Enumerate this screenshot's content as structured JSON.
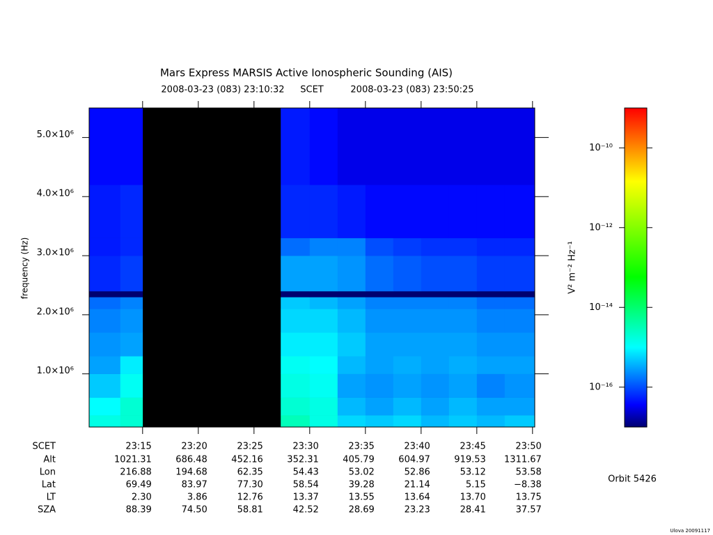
{
  "chart_data": {
    "type": "spectrogram",
    "title": "Mars Express MARSIS Active Ionospheric Sounding (AIS)",
    "start_time": "2008-03-23 (083) 23:10:32",
    "time_label": "SCET",
    "end_time": "2008-03-23 (083) 23:50:25",
    "ylabel": "frequency (Hz)",
    "xlim": [
      1390.2,
      1430.2
    ],
    "xticks": [
      {
        "value": 1395,
        "label": "23:15"
      },
      {
        "value": 1400,
        "label": "23:20"
      },
      {
        "value": 1405,
        "label": "23:25"
      },
      {
        "value": 1410,
        "label": "23:30"
      },
      {
        "value": 1415,
        "label": "23:35"
      },
      {
        "value": 1420,
        "label": "23:40"
      },
      {
        "value": 1425,
        "label": "23:45"
      },
      {
        "value": 1430,
        "label": "23:50"
      }
    ],
    "ylim": [
      100000,
      5500000
    ],
    "yticks": [
      {
        "value": 1000000,
        "label": "1.0×10⁶"
      },
      {
        "value": 2000000,
        "label": "2.0×10⁶"
      },
      {
        "value": 3000000,
        "label": "3.0×10⁶"
      },
      {
        "value": 4000000,
        "label": "4.0×10⁶"
      },
      {
        "value": 5000000,
        "label": "5.0×10⁶"
      }
    ],
    "xbins": [
      1390.2,
      1393,
      1395,
      1397.5,
      1400,
      1402.5,
      1405,
      1407.4,
      1410,
      1412.5,
      1415,
      1417.5,
      1420,
      1422.5,
      1425,
      1427.5,
      1430.2
    ],
    "ybins": [
      100000,
      300000,
      600000,
      1000000,
      1300000,
      1700000,
      2100000,
      2300000,
      2400000,
      3000000,
      3300000,
      4200000,
      5500000
    ],
    "z": [
      [
        1.5e-15,
        2e-15,
        null,
        null,
        null,
        null,
        null,
        3e-15,
        1.5e-15,
        6e-16,
        5e-16,
        6e-16,
        4e-16,
        5e-16,
        4e-16,
        5e-16
      ],
      [
        1e-15,
        2e-15,
        null,
        null,
        null,
        null,
        null,
        2e-15,
        1.5e-15,
        4e-16,
        3e-16,
        4e-16,
        3e-16,
        4e-16,
        3e-16,
        3e-16
      ],
      [
        5e-16,
        1.2e-15,
        null,
        null,
        null,
        null,
        null,
        1.5e-15,
        1.2e-15,
        3e-16,
        2.5e-16,
        3e-16,
        2.5e-16,
        3e-16,
        2e-16,
        2.5e-16
      ],
      [
        3e-16,
        8e-16,
        null,
        null,
        null,
        null,
        null,
        1.2e-15,
        1e-15,
        4e-16,
        3e-16,
        3.5e-16,
        3e-16,
        3.5e-16,
        3e-16,
        3e-16
      ],
      [
        2.5e-16,
        3e-16,
        null,
        null,
        null,
        null,
        null,
        8e-16,
        8e-16,
        5e-16,
        3e-16,
        3e-16,
        3e-16,
        3e-16,
        2.5e-16,
        2.5e-16
      ],
      [
        2e-16,
        2.5e-16,
        null,
        null,
        null,
        null,
        null,
        6e-16,
        6e-16,
        4e-16,
        2.5e-16,
        2.5e-16,
        2.5e-16,
        2.5e-16,
        2e-16,
        2e-16
      ],
      [
        1.5e-16,
        2e-16,
        null,
        null,
        null,
        null,
        null,
        5e-16,
        4e-16,
        3e-16,
        2e-16,
        2e-16,
        2e-16,
        2e-16,
        1.5e-16,
        1.5e-16
      ],
      [
        1e-17,
        1e-17,
        null,
        null,
        null,
        null,
        null,
        1e-17,
        1e-17,
        1e-17,
        1e-17,
        1e-17,
        1e-17,
        1e-17,
        1e-17,
        1e-17
      ],
      [
        6e-17,
        8e-17,
        null,
        null,
        null,
        null,
        null,
        3e-16,
        3e-16,
        2.5e-16,
        1.5e-16,
        1.2e-16,
        1e-16,
        1e-16,
        8e-17,
        8e-17
      ],
      [
        5e-17,
        6e-17,
        null,
        null,
        null,
        null,
        null,
        1.5e-16,
        2e-16,
        2e-16,
        1e-16,
        8e-17,
        7e-17,
        7e-17,
        6e-17,
        6e-17
      ],
      [
        5e-17,
        6e-17,
        null,
        null,
        null,
        null,
        null,
        6e-17,
        6e-17,
        5e-17,
        4e-17,
        4e-17,
        4e-17,
        4e-17,
        4e-17,
        4e-17
      ],
      [
        4e-17,
        4e-17,
        null,
        null,
        null,
        null,
        null,
        5e-17,
        4e-17,
        3e-17,
        3e-17,
        3e-17,
        3e-17,
        3e-17,
        3e-17,
        3e-17
      ]
    ],
    "zlim": [
      1e-17,
      1e-09
    ],
    "zscale": "log",
    "zticks": [
      {
        "value": 1e-10,
        "label": "10⁻¹⁰"
      },
      {
        "value": 1e-12,
        "label": "10⁻¹²"
      },
      {
        "value": 1e-14,
        "label": "10⁻¹⁴"
      },
      {
        "value": 1e-16,
        "label": "10⁻¹⁶"
      }
    ],
    "zlabel": "V² m⁻² Hz⁻¹",
    "colormap": [
      "#000070",
      "#0000ff",
      "#00ffff",
      "#00ff00",
      "#ffff00",
      "#ff0000"
    ],
    "colormap_stops": [
      0,
      0.07,
      0.25,
      0.47,
      0.77,
      1
    ],
    "missing_color": "#000000",
    "ephemeris": {
      "scet_label": "SCET",
      "rows": [
        {
          "label": "Alt",
          "values": [
            "1021.31",
            "686.48",
            "452.16",
            "352.31",
            "405.79",
            "604.97",
            "919.53",
            "1311.67"
          ]
        },
        {
          "label": "Lon",
          "values": [
            "216.88",
            "194.68",
            "62.35",
            "54.43",
            "53.02",
            "52.86",
            "53.12",
            "53.58"
          ]
        },
        {
          "label": "Lat",
          "values": [
            "69.49",
            "83.97",
            "77.30",
            "58.54",
            "39.28",
            "21.14",
            "5.15",
            "−8.38"
          ]
        },
        {
          "label": "LT",
          "values": [
            "2.30",
            "3.86",
            "12.76",
            "13.37",
            "13.55",
            "13.64",
            "13.70",
            "13.75"
          ]
        },
        {
          "label": "SZA",
          "values": [
            "88.39",
            "74.50",
            "58.81",
            "42.52",
            "28.69",
            "23.23",
            "28.41",
            "37.57"
          ]
        }
      ]
    },
    "orbit": "Orbit 5426",
    "credit": "Ulova 20091117"
  }
}
